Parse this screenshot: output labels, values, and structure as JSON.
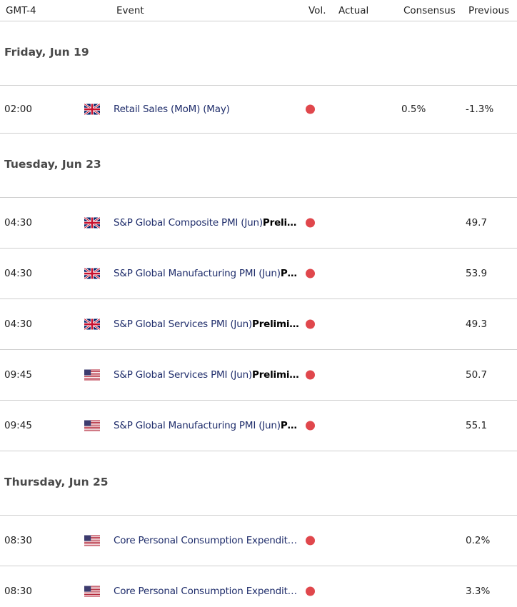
{
  "header": [
    "GMT-4",
    "Event",
    "Vol.",
    "Actual",
    "Consensus",
    "Previous"
  ],
  "days": [
    {
      "date": "Friday, Jun 19",
      "events": [
        {
          "time": "02:00",
          "event": "Retail Sales (MoM) (May)",
          "consensus": "0.5%",
          "previous": "-1.3%"
        }
      ]
    },
    {
      "date": "Tuesday, Jun 23",
      "events": [
        {
          "time": "04:30",
          "event": "S&P Global Composite PMI (Jun)",
          "event_bold": "Preli…",
          "previous": "49.7"
        },
        {
          "time": "04:30",
          "event": "S&P Global Manufacturing PMI (Jun)",
          "event_bold": "P…",
          "previous": "53.9"
        },
        {
          "time": "04:30",
          "event": "S&P Global Services PMI (Jun)",
          "event_bold": "Prelimi…",
          "previous": "49.3"
        },
        {
          "time": "09:45",
          "event": "S&P Global Services PMI (Jun)",
          "event_bold": "Prelimi…",
          "previous": "50.7"
        },
        {
          "time": "09:45",
          "event": "S&P Global Manufacturing PMI (Jun)",
          "event_bold": "P…",
          "previous": "55.1"
        }
      ]
    },
    {
      "date": "Thursday, Jun 25",
      "events": [
        {
          "time": "08:30",
          "event": "Core Personal Consumption Expendit…",
          "previous": "0.2%"
        },
        {
          "time": "08:30",
          "event": "Core Personal Consumption Expendit…",
          "previous": "3.3%"
        }
      ]
    }
  ]
}
